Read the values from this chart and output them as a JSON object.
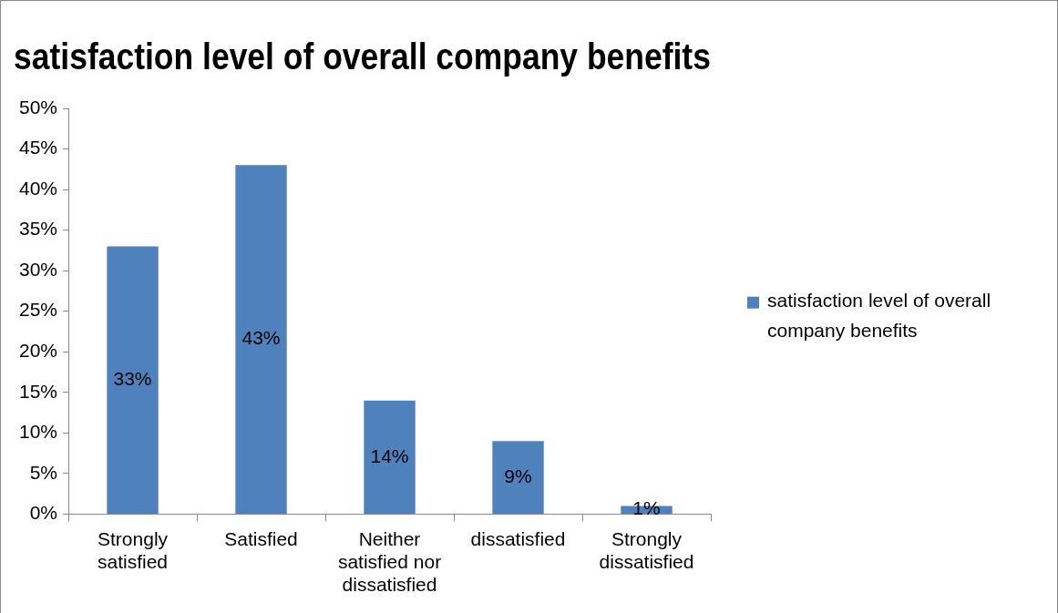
{
  "chart_data": {
    "type": "bar",
    "title": "satisfaction level of overall company benefits",
    "categories": [
      "Strongly satisfied",
      "Satisfied",
      "Neither satisfied nor dissatisfied",
      "dissatisfied",
      "Strongly dissatisfied"
    ],
    "series": [
      {
        "name": "satisfaction level of overall company benefits",
        "color": "#4f81bd",
        "values": [
          33,
          43,
          14,
          9,
          1
        ],
        "value_labels": [
          "33%",
          "43%",
          "14%",
          "9%",
          "1%"
        ]
      }
    ],
    "ylim": [
      0,
      50
    ],
    "yticks": [
      {
        "value": 0,
        "label": "0%"
      },
      {
        "value": 5,
        "label": "5%"
      },
      {
        "value": 10,
        "label": "10%"
      },
      {
        "value": 15,
        "label": "15%"
      },
      {
        "value": 20,
        "label": "20%"
      },
      {
        "value": 25,
        "label": "25%"
      },
      {
        "value": 30,
        "label": "30%"
      },
      {
        "value": 35,
        "label": "35%"
      },
      {
        "value": 40,
        "label": "40%"
      },
      {
        "value": 45,
        "label": "45%"
      },
      {
        "value": 50,
        "label": "50%"
      }
    ],
    "grid": false,
    "legend": "right"
  }
}
